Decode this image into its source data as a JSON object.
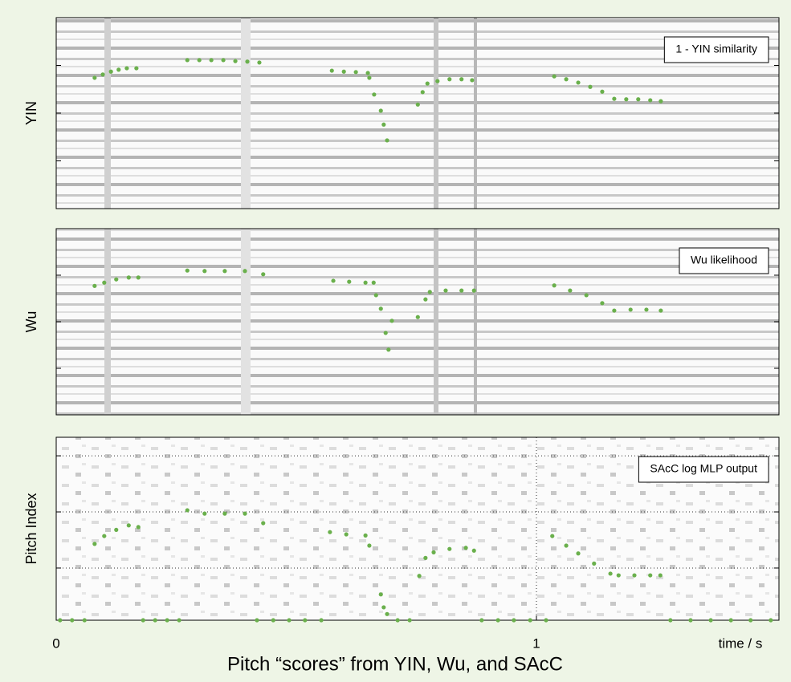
{
  "figure_title": "Pitch “scores” from YIN, Wu, and SAcC",
  "chart_data": [
    {
      "type": "scatter",
      "ylabel": "YIN",
      "annotation": "1 - YIN similarity",
      "color": "#6ab04c",
      "xlim": [
        0,
        1.505
      ],
      "ylim": [
        0,
        4
      ],
      "yticks": [
        1,
        2,
        3
      ],
      "grid": false,
      "x": [
        0.08,
        0.097,
        0.114,
        0.13,
        0.147,
        0.167,
        0.273,
        0.298,
        0.323,
        0.348,
        0.373,
        0.398,
        0.423,
        0.574,
        0.599,
        0.624,
        0.649,
        0.652,
        0.662,
        0.676,
        0.682,
        0.689,
        0.753,
        0.763,
        0.773,
        0.794,
        0.819,
        0.844,
        0.866,
        1.037,
        1.062,
        1.087,
        1.112,
        1.137,
        1.162,
        1.187,
        1.212,
        1.237,
        1.259
      ],
      "values": [
        2.74,
        2.81,
        2.87,
        2.91,
        2.94,
        2.94,
        3.11,
        3.11,
        3.11,
        3.11,
        3.09,
        3.08,
        3.06,
        2.89,
        2.87,
        2.86,
        2.84,
        2.74,
        2.39,
        2.05,
        1.76,
        1.43,
        2.18,
        2.44,
        2.62,
        2.67,
        2.71,
        2.71,
        2.69,
        2.77,
        2.71,
        2.64,
        2.55,
        2.45,
        2.3,
        2.29,
        2.29,
        2.27,
        2.25
      ]
    },
    {
      "type": "scatter",
      "ylabel": "Wu",
      "annotation": "Wu likelihood",
      "color": "#6ab04c",
      "xlim": [
        0,
        1.505
      ],
      "ylim": [
        0,
        4
      ],
      "yticks": [
        1,
        2,
        3
      ],
      "grid": false,
      "x": [
        0.08,
        0.1,
        0.125,
        0.151,
        0.171,
        0.273,
        0.309,
        0.351,
        0.393,
        0.431,
        0.577,
        0.61,
        0.644,
        0.661,
        0.666,
        0.676,
        0.686,
        0.692,
        0.699,
        0.753,
        0.769,
        0.778,
        0.811,
        0.844,
        0.87,
        1.037,
        1.07,
        1.104,
        1.137,
        1.162,
        1.196,
        1.229,
        1.259
      ],
      "values": [
        2.77,
        2.84,
        2.91,
        2.95,
        2.95,
        3.1,
        3.09,
        3.09,
        3.09,
        3.02,
        2.88,
        2.86,
        2.84,
        2.84,
        2.57,
        2.28,
        1.76,
        1.4,
        2.02,
        2.1,
        2.48,
        2.64,
        2.67,
        2.67,
        2.67,
        2.78,
        2.67,
        2.57,
        2.4,
        2.24,
        2.26,
        2.26,
        2.24
      ]
    },
    {
      "type": "scatter",
      "ylabel": "Pitch Index",
      "annotation": "SAcC log MLP output",
      "color": "#6ab04c",
      "xlim": [
        0,
        1.505
      ],
      "ylim": [
        0.07,
        3.33
      ],
      "yticks": [
        1,
        2,
        3
      ],
      "grid": true,
      "xticks": [
        0,
        1
      ],
      "xlabel": "time / s",
      "x": [
        0.08,
        0.1,
        0.125,
        0.151,
        0.171,
        0.273,
        0.309,
        0.351,
        0.393,
        0.431,
        0.57,
        0.604,
        0.644,
        0.652,
        0.676,
        0.682,
        0.689,
        0.756,
        0.769,
        0.786,
        0.819,
        0.853,
        0.87,
        1.033,
        1.062,
        1.087,
        1.12,
        1.154,
        1.171,
        1.204,
        1.237,
        1.258,
        0.008,
        0.033,
        0.059,
        0.181,
        0.206,
        0.231,
        0.256,
        0.418,
        0.452,
        0.485,
        0.518,
        0.552,
        0.711,
        0.736,
        0.886,
        0.92,
        0.953,
        0.987,
        1.02,
        1.279,
        1.321,
        1.363,
        1.405,
        1.446,
        1.488
      ],
      "values": [
        1.43,
        1.57,
        1.68,
        1.76,
        1.73,
        2.03,
        1.97,
        1.97,
        1.97,
        1.8,
        1.64,
        1.6,
        1.58,
        1.4,
        0.53,
        0.3,
        0.18,
        0.86,
        1.18,
        1.28,
        1.34,
        1.36,
        1.31,
        1.57,
        1.4,
        1.26,
        1.08,
        0.9,
        0.87,
        0.87,
        0.87,
        0.87,
        0.07,
        0.07,
        0.07,
        0.07,
        0.07,
        0.07,
        0.07,
        0.07,
        0.07,
        0.07,
        0.07,
        0.07,
        0.07,
        0.07,
        0.07,
        0.07,
        0.07,
        0.07,
        0.07,
        0.07,
        0.07,
        0.07,
        0.07,
        0.07,
        0.07
      ]
    }
  ]
}
